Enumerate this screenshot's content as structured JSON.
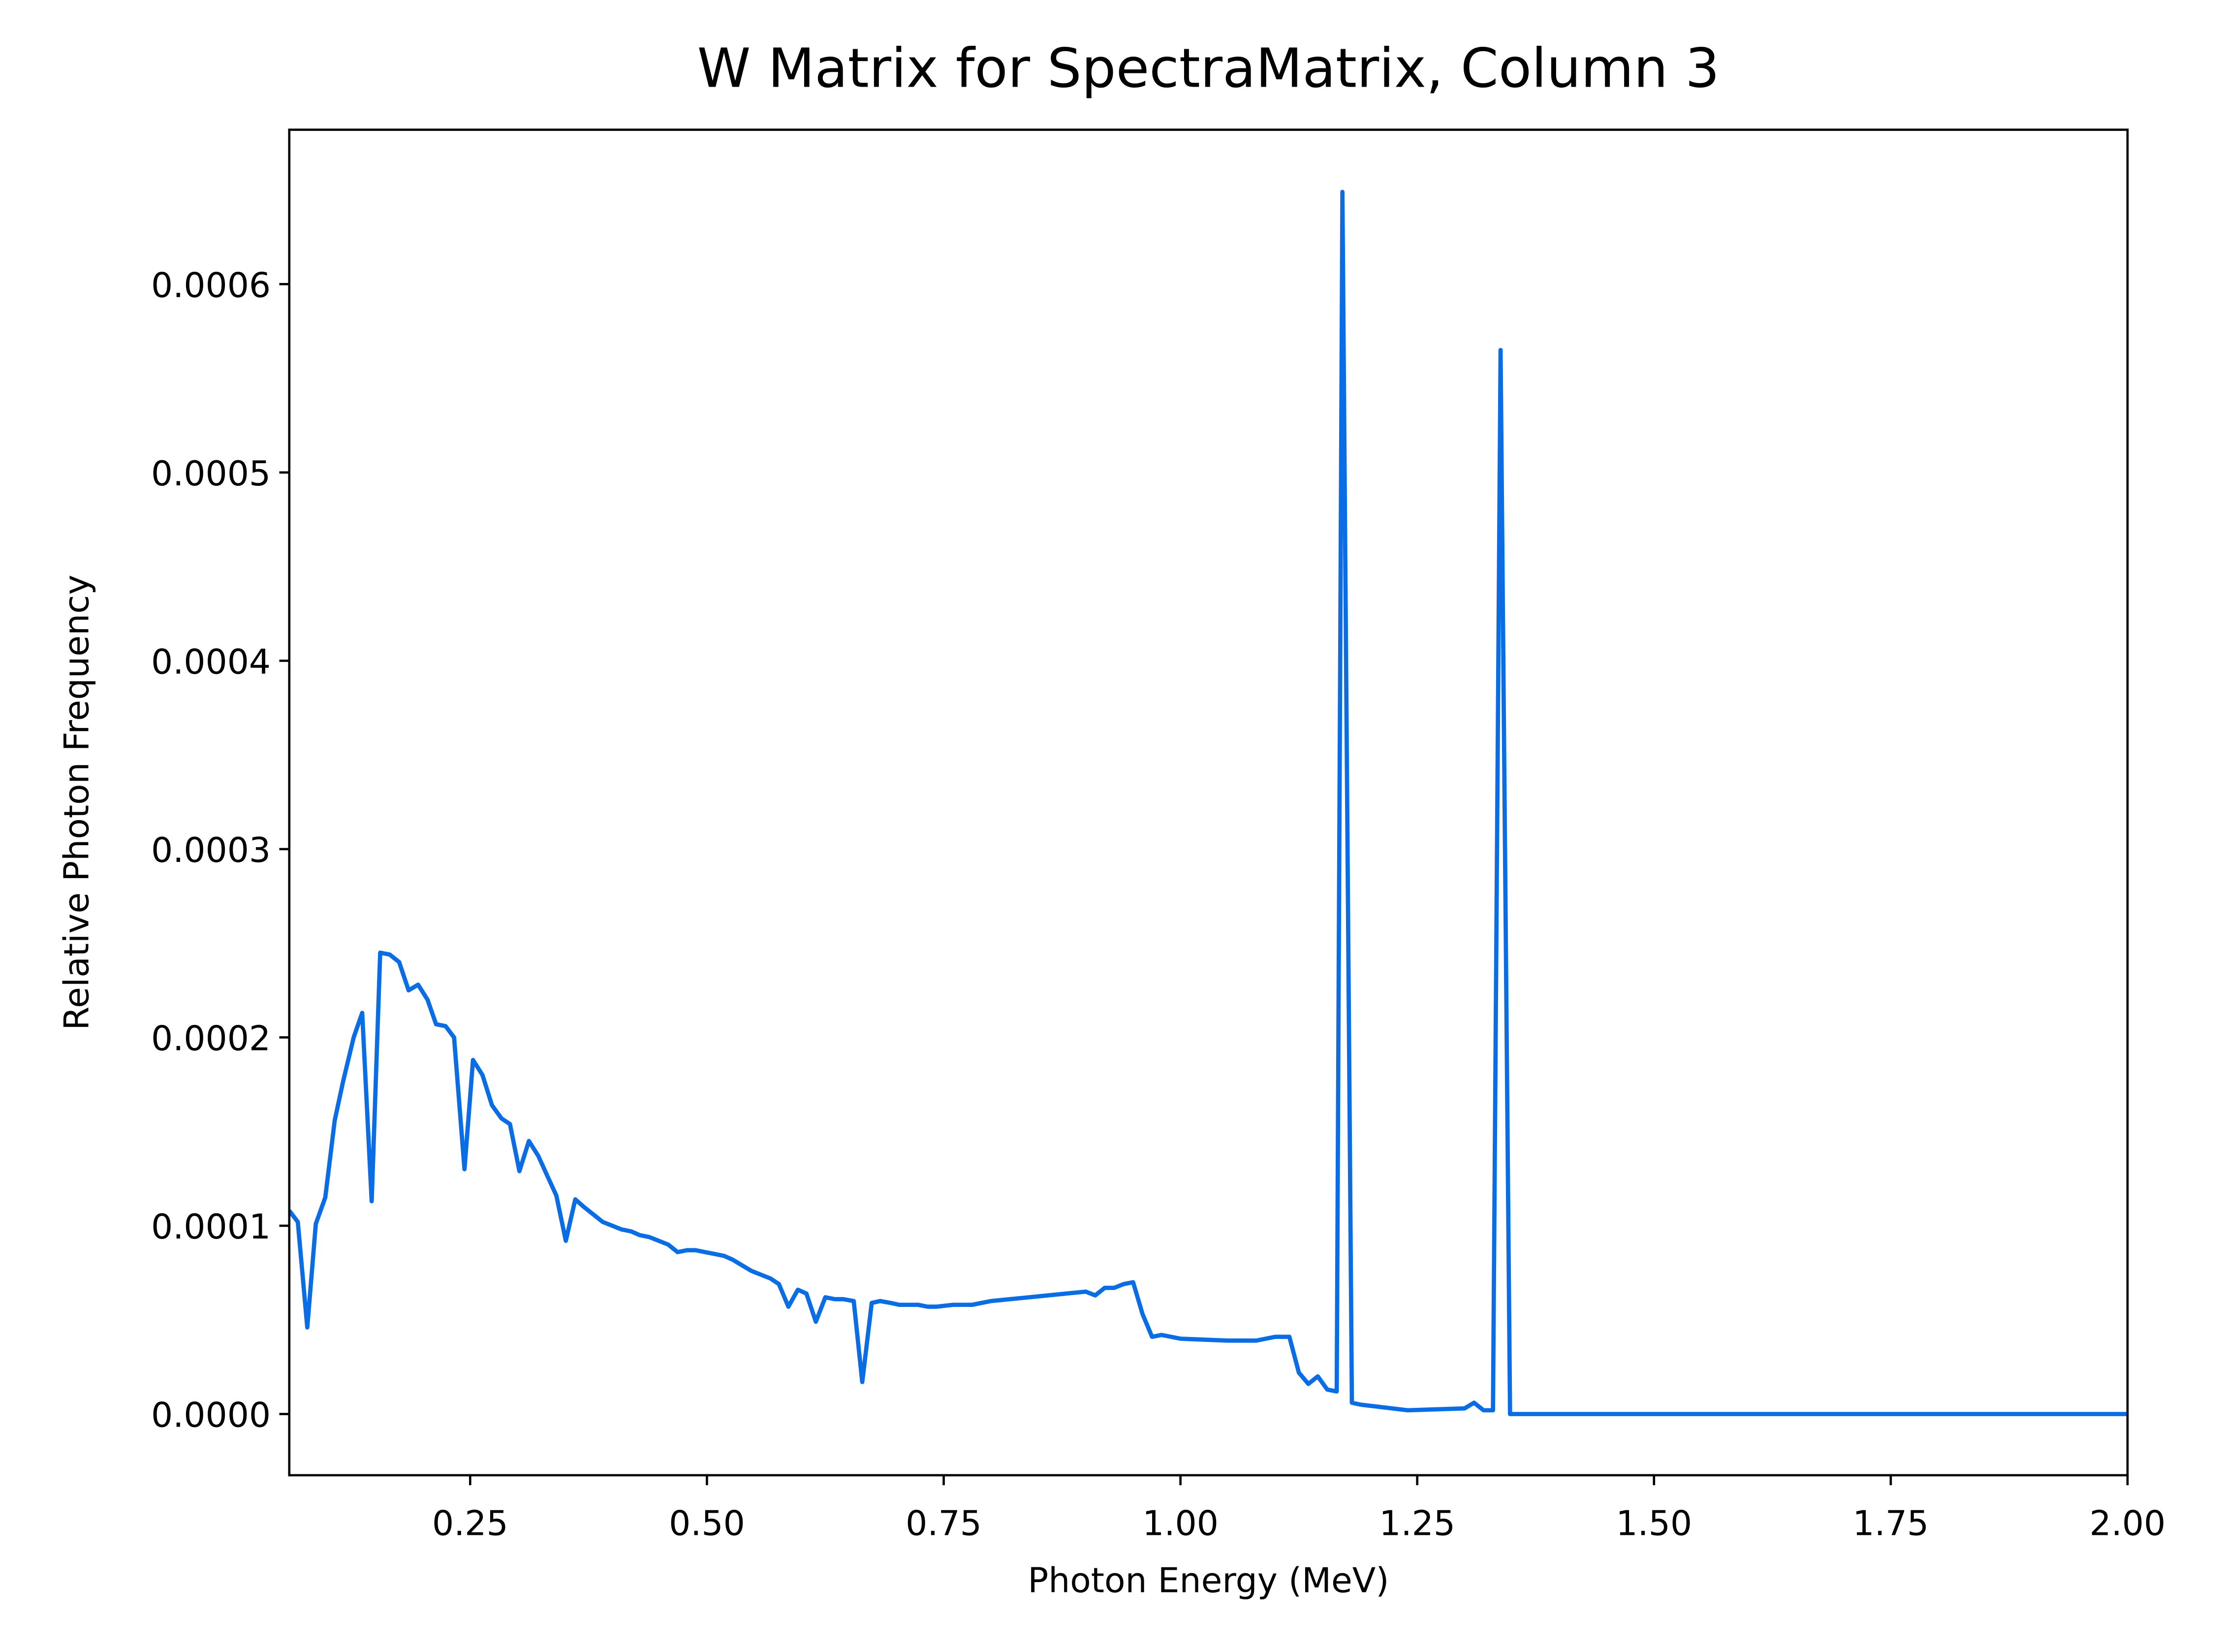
{
  "chart_data": {
    "type": "line",
    "title": "W Matrix for SpectraMatrix, Column 3",
    "x_label": "Photon Energy (MeV)",
    "y_label": "Relative Photon Frequency",
    "xlim": [
      0.059,
      2.0
    ],
    "ylim": [
      -3.25e-05,
      0.000682
    ],
    "xticks": [
      0.25,
      {
        "value": 0.5,
        "label": "0.50"
      },
      0.75,
      {
        "value": 1.0,
        "label": "1.00"
      },
      1.25,
      {
        "value": 1.5,
        "label": "1.50"
      },
      1.75,
      {
        "value": 2.0,
        "label": "2.00"
      }
    ],
    "yticks": [
      {
        "value": 0,
        "label": "0.0000"
      },
      {
        "value": 0.0001,
        "label": "0.0001"
      },
      {
        "value": 0.0002,
        "label": "0.0002"
      },
      {
        "value": 0.0003,
        "label": "0.0003"
      },
      {
        "value": 0.0004,
        "label": "0.0004"
      },
      {
        "value": 0.0005,
        "label": "0.0005"
      },
      {
        "value": 0.0006,
        "label": "0.0006"
      }
    ],
    "grid": false,
    "x": [
      0.059,
      0.068,
      0.078,
      0.087,
      0.097,
      0.107,
      0.116,
      0.127,
      0.136,
      0.146,
      0.155,
      0.165,
      0.175,
      0.185,
      0.195,
      0.205,
      0.214,
      0.224,
      0.233,
      0.244,
      0.253,
      0.263,
      0.273,
      0.283,
      0.292,
      0.302,
      0.312,
      0.322,
      0.331,
      0.341,
      0.351,
      0.361,
      0.37,
      0.38,
      0.39,
      0.4,
      0.41,
      0.42,
      0.429,
      0.439,
      0.449,
      0.459,
      0.469,
      0.479,
      0.488,
      0.498,
      0.508,
      0.518,
      0.527,
      0.537,
      0.547,
      0.557,
      0.567,
      0.576,
      0.586,
      0.596,
      0.605,
      0.615,
      0.625,
      0.635,
      0.644,
      0.655,
      0.664,
      0.674,
      0.683,
      0.694,
      0.703,
      0.713,
      0.723,
      0.733,
      0.742,
      0.76,
      0.78,
      0.8,
      0.82,
      0.84,
      0.86,
      0.88,
      0.9,
      0.91,
      0.92,
      0.93,
      0.94,
      0.95,
      0.96,
      0.97,
      0.98,
      1.0,
      1.05,
      1.08,
      1.1,
      1.115,
      1.125,
      1.135,
      1.145,
      1.155,
      1.165,
      1.171,
      1.181,
      1.19,
      1.24,
      1.3,
      1.31,
      1.32,
      1.33,
      1.338,
      1.348,
      2.0
    ],
    "series": [
      {
        "name": "Column 3",
        "color": "#0a6de6",
        "values": [
          0.000108,
          0.000102,
          4.6e-05,
          0.000101,
          0.000115,
          0.000156,
          0.000177,
          0.0002,
          0.000213,
          0.000113,
          0.000245,
          0.000244,
          0.00024,
          0.000225,
          0.000228,
          0.00022,
          0.000207,
          0.000206,
          0.0002,
          0.00013,
          0.000188,
          0.00018,
          0.000164,
          0.000157,
          0.000154,
          0.000129,
          0.000145,
          0.000137,
          0.000127,
          0.000116,
          9.2e-05,
          0.000114,
          0.00011,
          0.000106,
          0.000102,
          0.0001,
          9.8e-05,
          9.7e-05,
          9.5e-05,
          9.4e-05,
          9.2e-05,
          9e-05,
          8.6e-05,
          8.7e-05,
          8.7e-05,
          8.6e-05,
          8.5e-05,
          8.4e-05,
          8.2e-05,
          7.9e-05,
          7.6e-05,
          7.4e-05,
          7.2e-05,
          6.9e-05,
          5.7e-05,
          6.6e-05,
          6.4e-05,
          4.9e-05,
          6.2e-05,
          6.1e-05,
          6.1e-05,
          6e-05,
          1.7e-05,
          5.9e-05,
          6e-05,
          5.9e-05,
          5.8e-05,
          5.8e-05,
          5.8e-05,
          5.7e-05,
          5.7e-05,
          5.8e-05,
          5.8e-05,
          6e-05,
          6.1e-05,
          6.2e-05,
          6.3e-05,
          6.4e-05,
          6.5e-05,
          6.3e-05,
          6.7e-05,
          6.7e-05,
          6.9e-05,
          7e-05,
          5.3e-05,
          4.1e-05,
          4.2e-05,
          4e-05,
          3.9e-05,
          3.9e-05,
          4.1e-05,
          4.1e-05,
          2.2e-05,
          1.6e-05,
          2e-05,
          1.3e-05,
          1.2e-05,
          0.000649,
          6e-06,
          5e-06,
          2e-06,
          3e-06,
          6e-06,
          2e-06,
          2e-06,
          0.000565,
          0.0,
          0.0
        ]
      }
    ]
  }
}
